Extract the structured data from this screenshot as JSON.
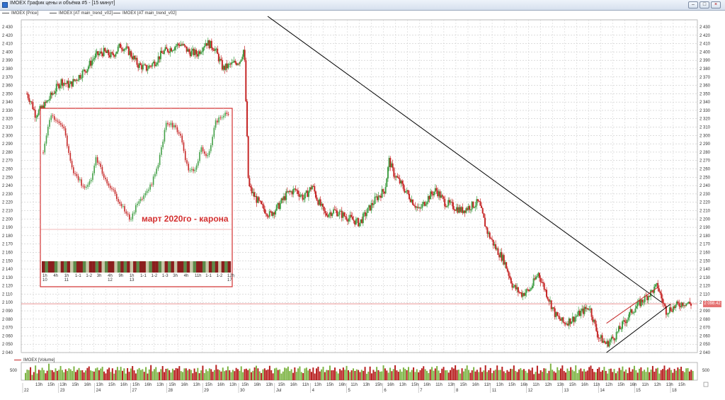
{
  "window": {
    "title": "IMOEX График цены и объёма #5 - [15 минут]"
  },
  "legend": {
    "items": [
      "IMOEX [Price]",
      "IMOEX [AT main_trend_v02]",
      "IMOEX [AT main_trend_v02]"
    ],
    "volume": "IMOEX [Volume]"
  },
  "annotation": {
    "text": "март 2020го - карона",
    "color": "#d32f2f"
  },
  "price": {
    "current": "2 098.42",
    "level": 2098.42
  },
  "volume_axis": {
    "label": "500"
  },
  "colors": {
    "up": "#43a047",
    "down": "#c62828",
    "trend": "#000000",
    "inset_border": "#d32f2f",
    "level_line": "#e57373"
  },
  "chart_data": {
    "type": "candlestick",
    "title": "",
    "ylim": [
      2040,
      2430
    ],
    "yticks": [
      2040,
      2050,
      2060,
      2070,
      2080,
      2090,
      2100,
      2110,
      2120,
      2130,
      2140,
      2150,
      2160,
      2170,
      2180,
      2190,
      2200,
      2210,
      2220,
      2230,
      2240,
      2250,
      2260,
      2270,
      2280,
      2290,
      2300,
      2310,
      2320,
      2330,
      2340,
      2350,
      2360,
      2370,
      2380,
      2390,
      2400,
      2410,
      2420,
      2430
    ],
    "ytick_labels": [
      "2 040",
      "2 050",
      "2 060",
      "2 070",
      "2 080",
      "2 090",
      "2 100",
      "2 110",
      "2 120",
      "2 130",
      "2 140",
      "2 150",
      "2 160",
      "2 170",
      "2 180",
      "2 190",
      "2 200",
      "2 210",
      "2 220",
      "2 230",
      "2 240",
      "2 250",
      "2 260",
      "2 270",
      "2 280",
      "2 290",
      "2 300",
      "2 310",
      "2 320",
      "2 330",
      "2 340",
      "2 350",
      "2 360",
      "2 370",
      "2 380",
      "2 390",
      "2 400",
      "2 410",
      "2 420",
      "2 430"
    ],
    "time_axis_top": [
      "13h",
      "15h",
      "13h",
      "15h",
      "16h",
      "13h",
      "15h",
      "16h",
      "15h",
      "16h",
      "13h",
      "15h",
      "16h",
      "13h",
      "15h",
      "16h",
      "13h",
      "15h",
      "16h",
      "13h",
      "15h",
      "16h",
      "11h",
      "13h",
      "15h",
      "16h",
      "11h",
      "13h",
      "15h",
      "16h",
      "13h",
      "15h",
      "16h",
      "11h",
      "13h",
      "15h",
      "16h",
      "11h",
      "13h",
      "15h",
      "16h",
      "11h",
      "12h",
      "13h",
      "15h",
      "16h",
      "11h",
      "12h",
      "15h",
      "16h",
      "11h",
      "12h",
      "13h",
      "15h"
    ],
    "time_axis_bottom": [
      "22",
      "23",
      "24",
      "27",
      "28",
      "29",
      "30",
      "Jul",
      "4",
      "5",
      "6",
      "7",
      "8",
      "11",
      "12",
      "13",
      "14",
      "15",
      "18"
    ],
    "close_path": [
      [
        0,
        2350
      ],
      [
        1,
        2340
      ],
      [
        2,
        2325
      ],
      [
        4,
        2335
      ],
      [
        6,
        2350
      ],
      [
        8,
        2365
      ],
      [
        10,
        2360
      ],
      [
        12,
        2370
      ],
      [
        14,
        2380
      ],
      [
        16,
        2395
      ],
      [
        18,
        2400
      ],
      [
        20,
        2395
      ],
      [
        22,
        2408
      ],
      [
        24,
        2400
      ],
      [
        26,
        2385
      ],
      [
        28,
        2380
      ],
      [
        30,
        2388
      ],
      [
        32,
        2400
      ],
      [
        34,
        2405
      ],
      [
        36,
        2410
      ],
      [
        38,
        2400
      ],
      [
        40,
        2398
      ],
      [
        42,
        2412
      ],
      [
        44,
        2405
      ],
      [
        46,
        2380
      ],
      [
        48,
        2385
      ],
      [
        50,
        2390
      ],
      [
        51,
        2405
      ],
      [
        52,
        2240
      ],
      [
        53,
        2230
      ],
      [
        55,
        2215
      ],
      [
        57,
        2205
      ],
      [
        59,
        2215
      ],
      [
        61,
        2230
      ],
      [
        63,
        2235
      ],
      [
        65,
        2225
      ],
      [
        67,
        2240
      ],
      [
        68,
        2225
      ],
      [
        70,
        2205
      ],
      [
        72,
        2210
      ],
      [
        74,
        2205
      ],
      [
        76,
        2200
      ],
      [
        78,
        2195
      ],
      [
        80,
        2210
      ],
      [
        82,
        2225
      ],
      [
        84,
        2235
      ],
      [
        85,
        2270
      ],
      [
        86,
        2255
      ],
      [
        88,
        2240
      ],
      [
        90,
        2225
      ],
      [
        92,
        2210
      ],
      [
        94,
        2225
      ],
      [
        96,
        2235
      ],
      [
        98,
        2220
      ],
      [
        100,
        2215
      ],
      [
        102,
        2210
      ],
      [
        104,
        2215
      ],
      [
        106,
        2220
      ],
      [
        108,
        2185
      ],
      [
        110,
        2165
      ],
      [
        112,
        2150
      ],
      [
        114,
        2120
      ],
      [
        116,
        2110
      ],
      [
        118,
        2115
      ],
      [
        120,
        2135
      ],
      [
        122,
        2110
      ],
      [
        124,
        2085
      ],
      [
        126,
        2075
      ],
      [
        128,
        2080
      ],
      [
        130,
        2088
      ],
      [
        132,
        2095
      ],
      [
        134,
        2060
      ],
      [
        136,
        2050
      ],
      [
        138,
        2060
      ],
      [
        140,
        2075
      ],
      [
        142,
        2090
      ],
      [
        144,
        2100
      ],
      [
        146,
        2110
      ],
      [
        148,
        2120
      ],
      [
        149,
        2103
      ],
      [
        150,
        2090
      ],
      [
        152,
        2095
      ],
      [
        154,
        2100
      ],
      [
        156,
        2098
      ]
    ],
    "volume_bars": [
      4,
      6,
      5,
      7,
      3,
      5,
      8,
      4,
      6,
      5,
      7,
      6,
      4,
      5,
      9,
      6,
      5,
      4,
      7,
      5,
      6,
      8,
      5,
      4,
      6,
      5,
      7,
      6,
      5,
      8,
      4,
      6,
      7,
      5,
      6,
      4,
      5,
      7,
      8,
      6,
      5,
      4,
      6,
      7,
      5,
      6,
      8,
      5,
      4,
      6,
      7,
      5,
      6,
      4,
      5,
      7,
      6,
      8,
      5,
      6,
      4,
      7,
      5,
      6,
      8,
      5,
      4,
      6,
      7,
      5,
      6,
      5,
      7,
      4,
      6,
      8,
      5,
      6,
      7,
      4,
      5,
      6,
      8,
      5,
      6,
      7,
      5,
      4,
      6,
      5,
      7,
      6,
      8,
      5,
      4,
      6,
      7,
      5,
      6,
      5
    ]
  },
  "inset": {
    "time_labels": [
      "1h",
      "4h",
      "1h",
      "1-1",
      "1-2",
      "3h",
      "4h",
      "9h",
      "1h",
      "1-1",
      "1-2",
      "1-3",
      "3h",
      "4h",
      "11h",
      "1-1",
      "1-2",
      "12h"
    ],
    "sub_labels": [
      "10",
      "",
      "11",
      "",
      "",
      "",
      "12",
      "",
      "13",
      "",
      "",
      "",
      "",
      "",
      "",
      "",
      "",
      "17"
    ],
    "close_path": [
      [
        0,
        2270
      ],
      [
        2,
        2320
      ],
      [
        4,
        2310
      ],
      [
        6,
        2300
      ],
      [
        8,
        2250
      ],
      [
        10,
        2235
      ],
      [
        12,
        2220
      ],
      [
        14,
        2240
      ],
      [
        15,
        2265
      ],
      [
        17,
        2240
      ],
      [
        19,
        2225
      ],
      [
        21,
        2210
      ],
      [
        23,
        2195
      ],
      [
        25,
        2180
      ],
      [
        27,
        2205
      ],
      [
        29,
        2215
      ],
      [
        31,
        2230
      ],
      [
        33,
        2260
      ],
      [
        35,
        2310
      ],
      [
        37,
        2305
      ],
      [
        39,
        2295
      ],
      [
        41,
        2250
      ],
      [
        43,
        2245
      ],
      [
        45,
        2275
      ],
      [
        47,
        2265
      ],
      [
        49,
        2310
      ],
      [
        51,
        2320
      ],
      [
        53,
        2320
      ]
    ],
    "heat": [
      1,
      0,
      1,
      1,
      0,
      2,
      1,
      0,
      1,
      2,
      0,
      1,
      1,
      0,
      2,
      1,
      1,
      0,
      1,
      2,
      0,
      1,
      1,
      2,
      0,
      1,
      0,
      1,
      2,
      1,
      0,
      1,
      1,
      2,
      0,
      1,
      1,
      0,
      2,
      1,
      0,
      1,
      2,
      1,
      1,
      0,
      1,
      2,
      0,
      1,
      1,
      0,
      2,
      1,
      0,
      1,
      2,
      1,
      0,
      1
    ]
  }
}
